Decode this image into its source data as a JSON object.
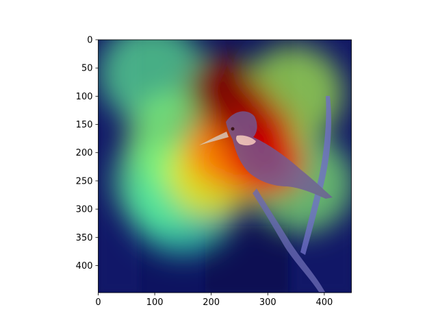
{
  "chart_data": {
    "type": "heatmap",
    "title": "",
    "xlabel": "",
    "ylabel": "",
    "image_size": [
      448,
      448
    ],
    "xlim": [
      0,
      448
    ],
    "ylim": [
      448,
      0
    ],
    "x_ticks": [
      0,
      100,
      200,
      300,
      400
    ],
    "y_ticks": [
      0,
      50,
      100,
      150,
      200,
      250,
      300,
      350,
      400
    ],
    "colormap": "jet",
    "overlay_alpha": 0.55,
    "grid": false,
    "activation_hotspots": [
      {
        "x": 215,
        "y": 85,
        "intensity": 1.0
      },
      {
        "x": 250,
        "y": 120,
        "intensity": 0.95
      },
      {
        "x": 285,
        "y": 165,
        "intensity": 0.9
      },
      {
        "x": 300,
        "y": 215,
        "intensity": 0.85
      },
      {
        "x": 230,
        "y": 190,
        "intensity": 0.7
      },
      {
        "x": 205,
        "y": 240,
        "intensity": 0.55
      },
      {
        "x": 140,
        "y": 180,
        "intensity": 0.35
      },
      {
        "x": 120,
        "y": 250,
        "intensity": 0.3
      },
      {
        "x": 95,
        "y": 60,
        "intensity": 0.3
      },
      {
        "x": 345,
        "y": 95,
        "intensity": 0.4
      },
      {
        "x": 360,
        "y": 255,
        "intensity": 0.35
      },
      {
        "x": 150,
        "y": 290,
        "intensity": 0.25
      }
    ],
    "colors": {
      "background": "#0d1360",
      "axis": "#000000",
      "bird_body": "#7a6aa0",
      "bird_breast": "#ffffff",
      "branch": "#6a6ab0"
    }
  }
}
